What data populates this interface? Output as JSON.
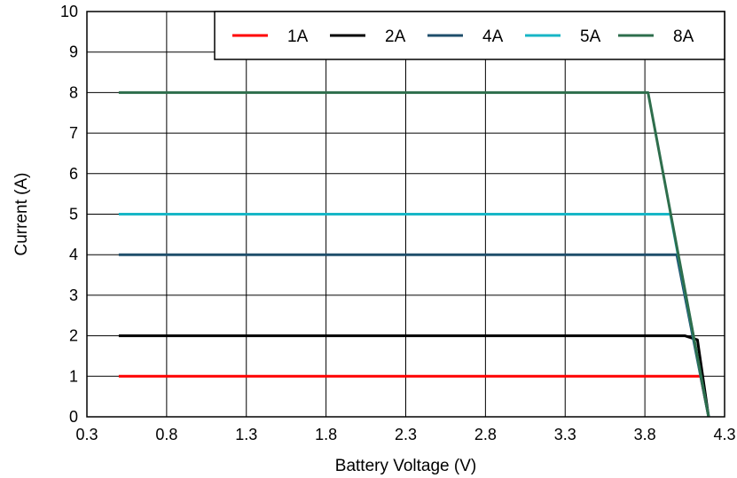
{
  "chart_data": {
    "type": "line",
    "title": "",
    "xlabel": "Battery Voltage (V)",
    "ylabel": "Current (A)",
    "xlim": [
      0.3,
      4.3
    ],
    "ylim": [
      0,
      10
    ],
    "x_ticks": [
      "0.3",
      "0.8",
      "1.3",
      "1.8",
      "2.3",
      "2.8",
      "3.3",
      "3.8",
      "4.3"
    ],
    "y_ticks": [
      "0",
      "1",
      "2",
      "3",
      "4",
      "5",
      "6",
      "7",
      "8",
      "9",
      "10"
    ],
    "grid": true,
    "legend_position": "top-right",
    "series": [
      {
        "name": "1A",
        "color": "#ff0000",
        "points": [
          [
            0.5,
            1
          ],
          [
            4.15,
            1
          ],
          [
            4.2,
            0
          ]
        ]
      },
      {
        "name": "2A",
        "color": "#000000",
        "points": [
          [
            0.5,
            2
          ],
          [
            4.05,
            2
          ],
          [
            4.13,
            1.9
          ],
          [
            4.2,
            0
          ]
        ]
      },
      {
        "name": "4A",
        "color": "#1f4e6b",
        "points": [
          [
            0.5,
            4
          ],
          [
            4.0,
            4
          ],
          [
            4.2,
            0
          ]
        ]
      },
      {
        "name": "5A",
        "color": "#17b6c6",
        "points": [
          [
            0.5,
            5
          ],
          [
            3.96,
            5
          ],
          [
            4.2,
            0
          ]
        ]
      },
      {
        "name": "8A",
        "color": "#2e6e4c",
        "points": [
          [
            0.5,
            8
          ],
          [
            3.82,
            8
          ],
          [
            4.2,
            0
          ]
        ]
      }
    ]
  }
}
